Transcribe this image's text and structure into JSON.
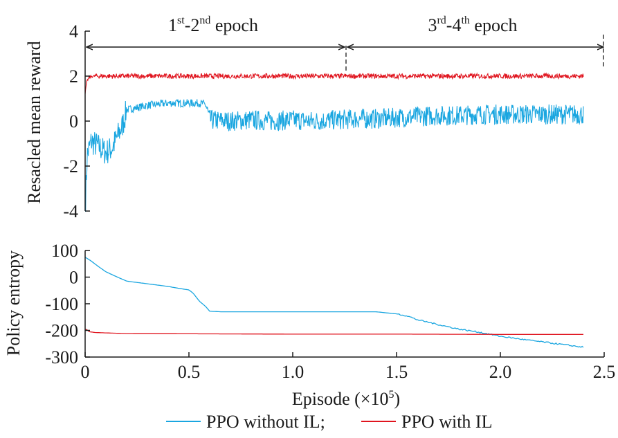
{
  "colors": {
    "ppo_without_il": "#1aa6e0",
    "ppo_with_il": "#e0141e",
    "axis": "#1a1a1a"
  },
  "annotations": {
    "epoch_12": {
      "sup1": "st",
      "sep": "-2",
      "sup2": "nd",
      "tail": " epoch",
      "lead": "1"
    },
    "epoch_34": {
      "lead": "3",
      "sup1": "rd",
      "sep": "-4",
      "sup2": "th",
      "tail": " epoch"
    },
    "epoch_boundary_x": 1.25
  },
  "axes": {
    "xlabel_main": "Episode (×10",
    "xlabel_exp": "5",
    "xlabel_close": ")",
    "top_ylabel": "Resacled mean reward",
    "bottom_ylabel": "Policy entropy"
  },
  "legend": {
    "label_without": "PPO without IL;",
    "label_with": "PPO with IL"
  },
  "chart_data": [
    {
      "type": "line",
      "id": "reward",
      "ylabel": "Resacled mean reward",
      "xlim": [
        0,
        2.5
      ],
      "ylim": [
        -4,
        4
      ],
      "yticks": [
        4,
        2,
        0,
        -2,
        -4
      ],
      "series": [
        {
          "name": "PPO without IL",
          "x": [
            0,
            0.01,
            0.03,
            0.06,
            0.1,
            0.13,
            0.16,
            0.18,
            0.2,
            0.25,
            0.3,
            0.35,
            0.4,
            0.45,
            0.5,
            0.55,
            0.58,
            0.6,
            0.7,
            0.8,
            0.9,
            1.0,
            1.1,
            1.2,
            1.3,
            1.4,
            1.5,
            1.6,
            1.7,
            1.8,
            1.9,
            2.0,
            2.1,
            2.2,
            2.3,
            2.4
          ],
          "y": [
            -4.0,
            -1.5,
            -0.9,
            -1.1,
            -1.4,
            -1.2,
            -0.6,
            -0.2,
            0.5,
            0.6,
            0.7,
            0.75,
            0.8,
            0.8,
            0.8,
            0.8,
            0.75,
            0.05,
            0.0,
            0.05,
            0.0,
            0.05,
            0.0,
            0.05,
            0.1,
            0.1,
            0.15,
            0.2,
            0.25,
            0.25,
            0.3,
            0.3,
            0.3,
            0.3,
            0.3,
            0.3
          ]
        },
        {
          "name": "PPO with IL",
          "x": [
            0,
            0.005,
            0.01,
            0.02,
            0.04,
            2.4
          ],
          "y": [
            1.2,
            1.6,
            1.8,
            1.95,
            2.0,
            2.0
          ]
        }
      ]
    },
    {
      "type": "line",
      "id": "entropy",
      "ylabel": "Policy entropy",
      "xlabel": "Episode (×10^5)",
      "xlim": [
        0,
        2.5
      ],
      "ylim": [
        -300,
        100
      ],
      "xticks": [
        0,
        0.5,
        1.0,
        1.5,
        2.0,
        2.5
      ],
      "xticklabels": [
        "0",
        "0.5",
        "1.0",
        "1.5",
        "2.0",
        "2.5"
      ],
      "yticks": [
        100,
        0,
        -100,
        -200,
        -300
      ],
      "series": [
        {
          "name": "PPO without IL",
          "x": [
            0,
            0.03,
            0.06,
            0.1,
            0.15,
            0.2,
            0.25,
            0.3,
            0.35,
            0.4,
            0.45,
            0.5,
            0.52,
            0.55,
            0.58,
            0.6,
            0.65,
            0.8,
            1.0,
            1.2,
            1.4,
            1.5,
            1.55,
            1.6,
            1.7,
            1.8,
            1.9,
            2.0,
            2.1,
            2.2,
            2.3,
            2.4
          ],
          "y": [
            75,
            60,
            42,
            20,
            2,
            -15,
            -20,
            -25,
            -30,
            -35,
            -42,
            -48,
            -60,
            -90,
            -110,
            -128,
            -130,
            -130,
            -130,
            -130,
            -130,
            -138,
            -145,
            -160,
            -178,
            -195,
            -207,
            -222,
            -233,
            -243,
            -253,
            -263
          ]
        },
        {
          "name": "PPO with IL",
          "x": [
            0,
            0.01,
            0.02,
            0.05,
            0.2,
            0.6,
            1.0,
            1.5,
            2.0,
            2.4
          ],
          "y": [
            -195,
            -198,
            -205,
            -208,
            -212,
            -213,
            -214,
            -214,
            -215,
            -215
          ]
        }
      ]
    }
  ]
}
